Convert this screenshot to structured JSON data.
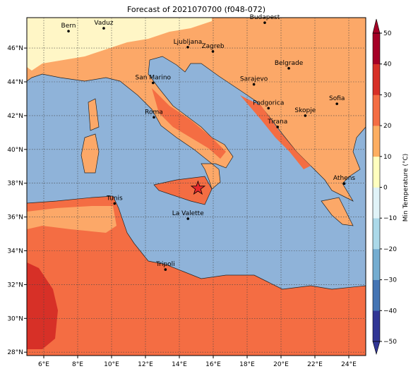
{
  "chart_data": {
    "type": "map",
    "title": "Forecast of 2021070700 (f048-072)",
    "xlim": [
      5,
      25
    ],
    "ylim": [
      27.8,
      47.8
    ],
    "xticks": [
      {
        "value": 6,
        "label": "6°E"
      },
      {
        "value": 8,
        "label": "8°E"
      },
      {
        "value": 10,
        "label": "10°E"
      },
      {
        "value": 12,
        "label": "12°E"
      },
      {
        "value": 14,
        "label": "14°E"
      },
      {
        "value": 16,
        "label": "16°E"
      },
      {
        "value": 18,
        "label": "18°E"
      },
      {
        "value": 20,
        "label": "20°E"
      },
      {
        "value": 22,
        "label": "22°E"
      },
      {
        "value": 24,
        "label": "24°E"
      }
    ],
    "yticks": [
      {
        "value": 28,
        "label": "28°N"
      },
      {
        "value": 30,
        "label": "30°N"
      },
      {
        "value": 32,
        "label": "32°N"
      },
      {
        "value": 34,
        "label": "34°N"
      },
      {
        "value": 36,
        "label": "36°N"
      },
      {
        "value": 38,
        "label": "38°N"
      },
      {
        "value": 40,
        "label": "40°N"
      },
      {
        "value": 42,
        "label": "42°N"
      },
      {
        "value": 44,
        "label": "44°N"
      },
      {
        "value": 46,
        "label": "46°N"
      }
    ],
    "grid": true,
    "cities": [
      {
        "name": "Bern",
        "lon": 7.46,
        "lat": 47.0
      },
      {
        "name": "Vaduz",
        "lon": 9.54,
        "lat": 47.17
      },
      {
        "name": "Budapest",
        "lon": 19.04,
        "lat": 47.5
      },
      {
        "name": "Ljubljana",
        "lon": 14.5,
        "lat": 46.05
      },
      {
        "name": "Zagreb",
        "lon": 15.98,
        "lat": 45.8
      },
      {
        "name": "Belgrade",
        "lon": 20.46,
        "lat": 44.8
      },
      {
        "name": "San Marino",
        "lon": 12.45,
        "lat": 43.94
      },
      {
        "name": "Sarajevo",
        "lon": 18.4,
        "lat": 43.85
      },
      {
        "name": "Sofia",
        "lon": 23.3,
        "lat": 42.7
      },
      {
        "name": "Roma",
        "lon": 12.5,
        "lat": 41.9
      },
      {
        "name": "Podgorica",
        "lon": 19.26,
        "lat": 42.44
      },
      {
        "name": "Skopje",
        "lon": 21.43,
        "lat": 42.0
      },
      {
        "name": "Tirana",
        "lon": 19.8,
        "lat": 41.33
      },
      {
        "name": "Athens",
        "lon": 23.73,
        "lat": 37.98
      },
      {
        "name": "Tunis",
        "lon": 10.18,
        "lat": 36.8
      },
      {
        "name": "La Valette",
        "lon": 14.51,
        "lat": 35.9
      },
      {
        "name": "Tripoli",
        "lon": 13.18,
        "lat": 32.89
      }
    ],
    "marker": {
      "lon": 15.1,
      "lat": 37.7,
      "color": "#e8262a"
    },
    "colorbar": {
      "label": "Min Temperature (°C)",
      "lim": [
        -50,
        50
      ],
      "ticks": [
        {
          "value": -50,
          "label": "−50"
        },
        {
          "value": -40,
          "label": "−40"
        },
        {
          "value": -30,
          "label": "−30"
        },
        {
          "value": -20,
          "label": "−20"
        },
        {
          "value": -10,
          "label": "−10"
        },
        0,
        10,
        20,
        30,
        40,
        50
      ],
      "colors": [
        "#313695",
        "#4575b4",
        "#74add1",
        "#abd9e9",
        "#e0f3f8",
        "#ffffbf",
        "#fdae61",
        "#f46d43",
        "#d73027",
        "#a50026"
      ]
    }
  }
}
